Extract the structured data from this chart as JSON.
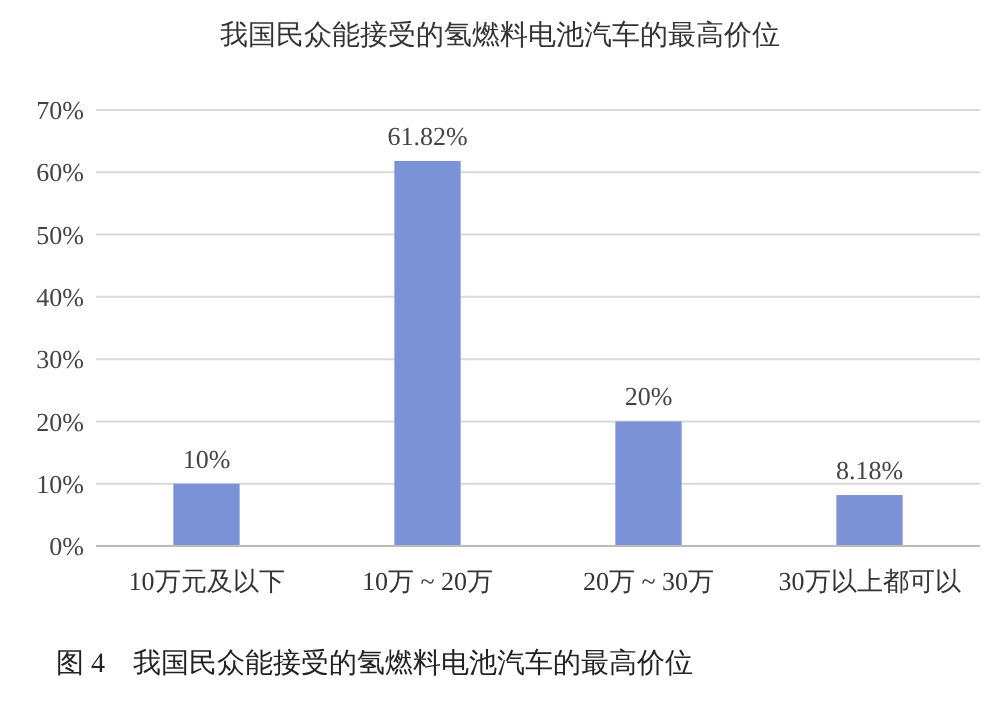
{
  "chart_data": {
    "type": "bar",
    "title": "我国民众能接受的氢燃料电池汽车的最高价位",
    "categories": [
      "10万元及以下",
      "10万 ~ 20万",
      "20万 ~ 30万",
      "30万以上都可以"
    ],
    "values": [
      10,
      61.82,
      20,
      8.18
    ],
    "value_labels": [
      "10%",
      "61.82%",
      "20%",
      "8.18%"
    ],
    "color": "#7b93d6",
    "ylim": [
      0,
      70
    ],
    "yticks": [
      {
        "value": 0,
        "label": "0%"
      },
      {
        "value": 10,
        "label": "10%"
      },
      {
        "value": 20,
        "label": "20%"
      },
      {
        "value": 30,
        "label": "30%"
      },
      {
        "value": 40,
        "label": "40%"
      },
      {
        "value": 50,
        "label": "50%"
      },
      {
        "value": 60,
        "label": "60%"
      },
      {
        "value": 70,
        "label": "70%"
      }
    ],
    "grid": "y",
    "annotations": [
      "图 4　我国民众能接受的氢燃料电池汽车的最高价位"
    ]
  }
}
